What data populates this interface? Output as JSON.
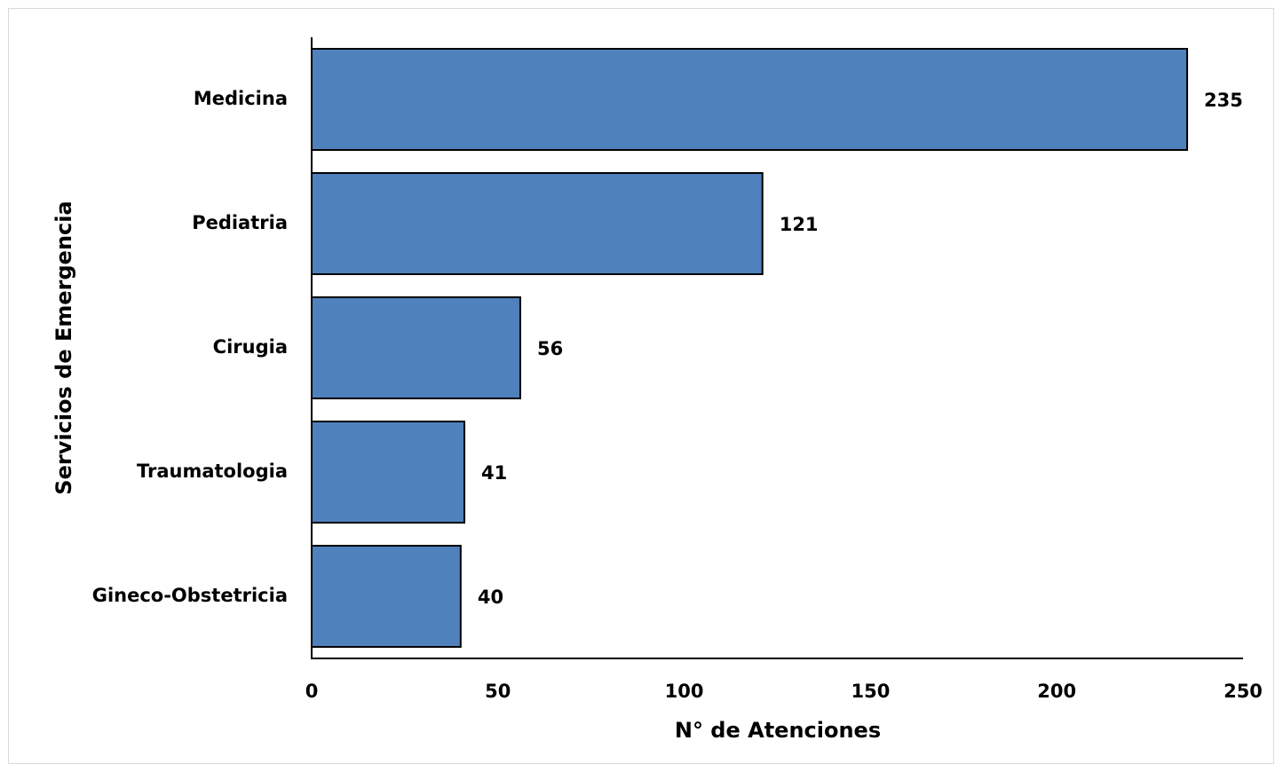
{
  "chart_data": {
    "type": "bar",
    "orientation": "horizontal",
    "categories": [
      "Medicina",
      "Pediatria",
      "Cirugia",
      "Traumatologia",
      "Gineco-Obstetricia"
    ],
    "values": [
      235,
      121,
      56,
      41,
      40
    ],
    "data_labels": [
      "235",
      "121",
      "56",
      "41",
      "40"
    ],
    "title": "",
    "xlabel": "N°  de Atenciones",
    "ylabel": "Servicios de Emergencia",
    "xlim": [
      0,
      250
    ],
    "x_ticks": [
      "0",
      "50",
      "100",
      "150",
      "200",
      "250"
    ],
    "grid": false,
    "legend": "none",
    "bar_color": "#4f81bd",
    "bar_edge_color": "#000000"
  }
}
